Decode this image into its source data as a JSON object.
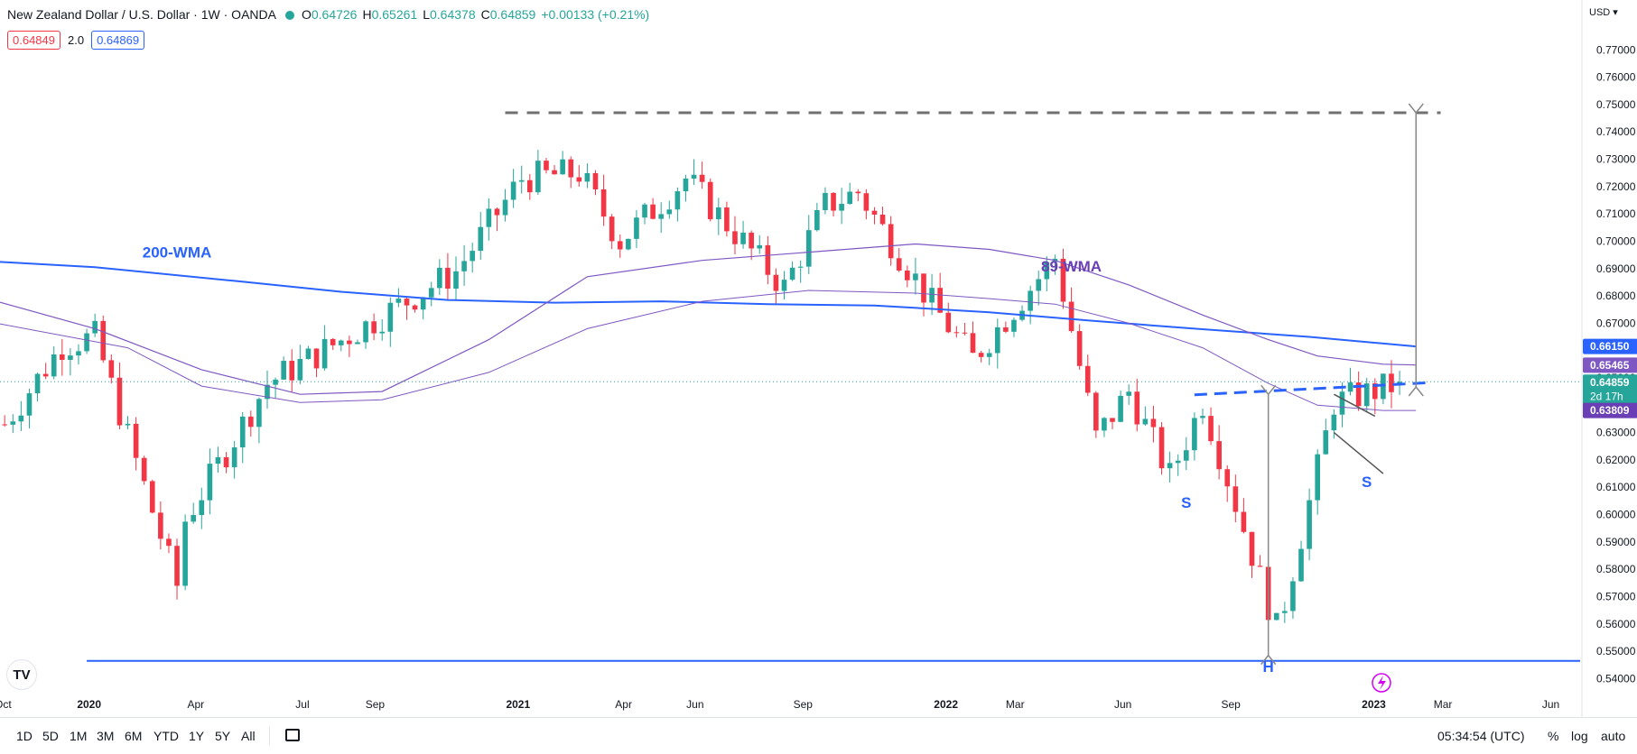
{
  "header": {
    "symbol": "New Zealand Dollar / U.S. Dollar · 1W · OANDA",
    "o_label": "O",
    "o_value": "0.64726",
    "h_label": "H",
    "h_value": "0.65261",
    "l_label": "L",
    "l_value": "0.64378",
    "c_label": "C",
    "c_value": "0.64859",
    "change": "+0.00133 (+0.21%)",
    "bid": "0.64849",
    "spread": "2.0",
    "ask": "0.64869"
  },
  "axis": {
    "currency": "USD",
    "current_price": "0.64859",
    "countdown": "2d 17h"
  },
  "toolbar": {
    "ranges": [
      "1D",
      "5D",
      "1M",
      "3M",
      "6M",
      "YTD",
      "1Y",
      "5Y",
      "All"
    ],
    "time": "05:34:54 (UTC)",
    "percent": "%",
    "log": "log",
    "auto": "auto"
  },
  "colors": {
    "up": "#26a69a",
    "down": "#f23645",
    "wma200": "#2962ff",
    "wma89": "#7e57c2",
    "annotation_blue": "#2962ff",
    "annotation_purple": "#6a3fb5"
  },
  "chart_data": {
    "type": "candlestick",
    "title": "New Zealand Dollar / U.S. Dollar · 1W · OANDA",
    "xlabel": "",
    "ylabel": "",
    "ylim": [
      0.5365,
      0.779
    ],
    "yticks": [
      "0.77000",
      "0.76000",
      "0.75000",
      "0.74000",
      "0.73000",
      "0.72000",
      "0.71000",
      "0.70000",
      "0.69000",
      "0.68000",
      "0.67000",
      "0.66000",
      "0.65000",
      "0.64000",
      "0.63000",
      "0.62000",
      "0.61000",
      "0.60000",
      "0.59000",
      "0.58000",
      "0.57000",
      "0.56000",
      "0.55000",
      "0.54000"
    ],
    "xlim": [
      "2019-10-17",
      "2023-06-26"
    ],
    "xticks": [
      {
        "label": "Oct",
        "date": "2019-10-01"
      },
      {
        "label": "2020",
        "date": "2020-01-01",
        "bold": true
      },
      {
        "label": "Apr",
        "date": "2020-04-01"
      },
      {
        "label": "Jul",
        "date": "2020-07-01"
      },
      {
        "label": "Sep",
        "date": "2020-09-01"
      },
      {
        "label": "2021",
        "date": "2021-01-01",
        "bold": true
      },
      {
        "label": "Apr",
        "date": "2021-04-01"
      },
      {
        "label": "Jun",
        "date": "2021-06-01"
      },
      {
        "label": "Sep",
        "date": "2021-09-01"
      },
      {
        "label": "2022",
        "date": "2022-01-01",
        "bold": true
      },
      {
        "label": "Mar",
        "date": "2022-03-01"
      },
      {
        "label": "Jun",
        "date": "2022-06-01"
      },
      {
        "label": "Sep",
        "date": "2022-09-01"
      },
      {
        "label": "2023",
        "date": "2023-01-01",
        "bold": true
      },
      {
        "label": "Mar",
        "date": "2023-03-01"
      },
      {
        "label": "Jun",
        "date": "2023-06-01"
      }
    ],
    "key_closes": [
      {
        "date": "2019-10-21",
        "close": 0.633
      },
      {
        "date": "2019-12-09",
        "close": 0.662
      },
      {
        "date": "2020-01-06",
        "close": 0.665
      },
      {
        "date": "2020-03-16",
        "close": 0.574
      },
      {
        "date": "2020-03-23",
        "close": 0.598
      },
      {
        "date": "2020-06-01",
        "close": 0.648
      },
      {
        "date": "2020-07-27",
        "close": 0.662
      },
      {
        "date": "2020-11-09",
        "close": 0.689
      },
      {
        "date": "2021-01-04",
        "close": 0.723
      },
      {
        "date": "2021-02-22",
        "close": 0.725
      },
      {
        "date": "2021-03-29",
        "close": 0.7
      },
      {
        "date": "2021-05-24",
        "close": 0.723
      },
      {
        "date": "2021-08-16",
        "close": 0.683
      },
      {
        "date": "2021-09-20",
        "close": 0.713
      },
      {
        "date": "2021-10-18",
        "close": 0.718
      },
      {
        "date": "2021-12-20",
        "close": 0.677
      },
      {
        "date": "2022-01-24",
        "close": 0.657
      },
      {
        "date": "2022-04-04",
        "close": 0.694
      },
      {
        "date": "2022-05-09",
        "close": 0.628
      },
      {
        "date": "2022-06-06",
        "close": 0.645
      },
      {
        "date": "2022-07-11",
        "close": 0.614
      },
      {
        "date": "2022-08-08",
        "close": 0.641
      },
      {
        "date": "2022-10-10",
        "close": 0.558
      },
      {
        "date": "2022-10-17",
        "close": 0.568
      },
      {
        "date": "2022-11-28",
        "close": 0.641
      },
      {
        "date": "2023-01-16",
        "close": 0.647
      },
      {
        "date": "2023-01-23",
        "close": 0.6486
      }
    ],
    "last": {
      "date": "2023-01-23",
      "open": 0.64726,
      "high": 0.65261,
      "low": 0.64378,
      "close": 0.64859
    },
    "series": [
      {
        "name": "200-WMA",
        "color": "#2962ff",
        "points": [
          [
            "2019-10-14",
            0.6925
          ],
          [
            "2020-01-06",
            0.6905
          ],
          [
            "2020-05-04",
            0.6855
          ],
          [
            "2020-08-03",
            0.6815
          ],
          [
            "2020-11-02",
            0.6785
          ],
          [
            "2021-02-01",
            0.6775
          ],
          [
            "2021-05-03",
            0.678
          ],
          [
            "2021-08-02",
            0.677
          ],
          [
            "2021-11-01",
            0.6765
          ],
          [
            "2022-02-07",
            0.674
          ],
          [
            "2022-05-02",
            0.671
          ],
          [
            "2022-08-01",
            0.668
          ],
          [
            "2022-11-07",
            0.665
          ],
          [
            "2023-02-06",
            0.6615
          ]
        ]
      },
      {
        "name": "89-WMA",
        "color": "#7e57c2",
        "points": [
          [
            "2019-10-14",
            0.678
          ],
          [
            "2020-01-06",
            0.668
          ],
          [
            "2020-04-06",
            0.653
          ],
          [
            "2020-06-29",
            0.644
          ],
          [
            "2020-09-07",
            0.645
          ],
          [
            "2020-12-07",
            0.664
          ],
          [
            "2021-03-01",
            0.687
          ],
          [
            "2021-06-07",
            0.693
          ],
          [
            "2021-09-06",
            0.696
          ],
          [
            "2021-12-06",
            0.699
          ],
          [
            "2022-02-07",
            0.697
          ],
          [
            "2022-04-04",
            0.693
          ],
          [
            "2022-06-06",
            0.684
          ],
          [
            "2022-08-08",
            0.673
          ],
          [
            "2022-10-03",
            0.664
          ],
          [
            "2022-11-14",
            0.658
          ],
          [
            "2023-01-09",
            0.655
          ],
          [
            "2023-02-06",
            0.6547
          ]
        ]
      },
      {
        "name": "",
        "color": "#7e57c2",
        "style": "thin",
        "points": [
          [
            "2019-10-14",
            0.67
          ],
          [
            "2020-02-03",
            0.661
          ],
          [
            "2020-04-06",
            0.647
          ],
          [
            "2020-06-29",
            0.641
          ],
          [
            "2020-09-07",
            0.642
          ],
          [
            "2020-12-07",
            0.652
          ],
          [
            "2021-03-01",
            0.668
          ],
          [
            "2021-06-07",
            0.678
          ],
          [
            "2021-09-06",
            0.682
          ],
          [
            "2021-12-06",
            0.681
          ],
          [
            "2022-02-07",
            0.679
          ],
          [
            "2022-04-04",
            0.677
          ],
          [
            "2022-06-06",
            0.67
          ],
          [
            "2022-08-08",
            0.661
          ],
          [
            "2022-10-03",
            0.648
          ],
          [
            "2022-11-14",
            0.64
          ],
          [
            "2023-01-09",
            0.6381
          ],
          [
            "2023-02-06",
            0.6381
          ]
        ]
      }
    ],
    "price_labels": [
      {
        "value": "0.66150",
        "color": "#2962ff"
      },
      {
        "value": "0.65465",
        "color": "#7e57c2"
      },
      {
        "value": "0.64859",
        "color": "#26a69a"
      },
      {
        "value": "0.63809",
        "color": "#6a3fb5"
      }
    ],
    "annotations": {
      "labels": [
        {
          "text": "200-WMA",
          "date": "2020-03-16",
          "price": 0.694,
          "color": "#2962ff"
        },
        {
          "text": "89-WMA",
          "date": "2022-04-18",
          "price": 0.689,
          "color": "#6a3fb5"
        },
        {
          "text": "S",
          "date": "2022-07-25",
          "price": 0.6025,
          "color": "#2962ff"
        },
        {
          "text": "H",
          "date": "2022-10-03",
          "price": 0.5425,
          "color": "#2962ff"
        },
        {
          "text": "S",
          "date": "2022-12-26",
          "price": 0.61,
          "color": "#2962ff"
        }
      ],
      "resistance_dashed": {
        "from": "2020-12-21",
        "to": "2023-02-27",
        "price": 0.747,
        "color": "#707070"
      },
      "support_line": {
        "from": "2019-12-30",
        "to": "2023-06-26",
        "price": 0.5465,
        "color": "#2962ff"
      },
      "neckline": {
        "from": "2022-08-01",
        "to": "2023-02-20",
        "price_from": 0.6438,
        "price_to": 0.6483,
        "color": "#2962ff"
      },
      "target_arrow": {
        "date": "2023-02-06",
        "from": 0.6467,
        "to": 0.747
      },
      "head_arrow": {
        "date": "2022-10-03",
        "from": 0.644,
        "to": 0.5485
      },
      "wedge_upper": {
        "from": "2022-11-28",
        "to": "2023-01-02",
        "price_from": 0.644,
        "price_to": 0.636
      },
      "wedge_lower": {
        "from": "2022-11-28",
        "to": "2023-01-09",
        "price_from": 0.63,
        "price_to": 0.615
      }
    }
  }
}
